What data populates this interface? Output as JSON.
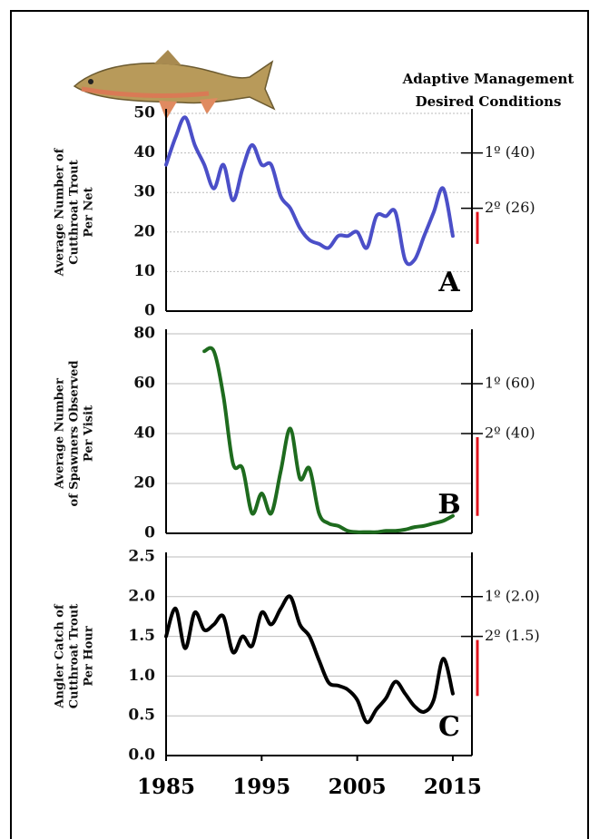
{
  "header": [
    "Adaptive Management",
    "Desired Conditions"
  ],
  "chart_data": [
    {
      "type": "line",
      "panel_label": "A",
      "y_label": [
        "Average Number of",
        "Cutthroat Trout",
        "Per Net"
      ],
      "x": [
        1985,
        1986,
        1987,
        1988,
        1989,
        1990,
        1991,
        1992,
        1993,
        1994,
        1995,
        1996,
        1997,
        1998,
        1999,
        2000,
        2001,
        2002,
        2003,
        2004,
        2005,
        2006,
        2007,
        2008,
        2009,
        2010,
        2011,
        2012,
        2013,
        2014,
        2015
      ],
      "series": [
        {
          "color": "#4b4fc8",
          "values": [
            37,
            44,
            49,
            42,
            37,
            31,
            37,
            28,
            36,
            42,
            37,
            37,
            29,
            26,
            21,
            18,
            17,
            16,
            19,
            19,
            20,
            16,
            24,
            24,
            25,
            13,
            13,
            19,
            25,
            31,
            19
          ]
        }
      ],
      "xlim": [
        1985,
        2017
      ],
      "ylim": [
        0,
        50
      ],
      "yticks": [
        0,
        10,
        20,
        30,
        40,
        50
      ],
      "grid": true,
      "annotations": [
        {
          "label": "1º (40)",
          "value": 40
        },
        {
          "label": "2º (26)",
          "value": 26
        }
      ],
      "red_bar": [
        17,
        26
      ]
    },
    {
      "type": "line",
      "panel_label": "B",
      "y_label": [
        "Average Number",
        "of Spawners Observed",
        "Per Visit"
      ],
      "x": [
        1989,
        1990,
        1991,
        1992,
        1993,
        1994,
        1995,
        1996,
        1997,
        1998,
        1999,
        2000,
        2001,
        2002,
        2003,
        2004,
        2005,
        2006,
        2007,
        2008,
        2009,
        2010,
        2011,
        2012,
        2013,
        2014,
        2015
      ],
      "series": [
        {
          "color": "#1e6b1e",
          "values": [
            73,
            73,
            55,
            28,
            26,
            8,
            16,
            8,
            25,
            42,
            22,
            26,
            8,
            4,
            3,
            1,
            0.5,
            0.5,
            0.5,
            1,
            1,
            1.5,
            2.5,
            3,
            4,
            5,
            7
          ]
        }
      ],
      "xlim": [
        1985,
        2017
      ],
      "ylim": [
        0,
        80
      ],
      "yticks": [
        0,
        20,
        40,
        60,
        80
      ],
      "grid": true,
      "annotations": [
        {
          "label": "1º (60)",
          "value": 60
        },
        {
          "label": "2º (40)",
          "value": 40
        }
      ],
      "red_bar": [
        7,
        40
      ]
    },
    {
      "type": "line",
      "panel_label": "C",
      "y_label": [
        "Angler Catch of",
        "Cutthroat Trout",
        "Per Hour"
      ],
      "x": [
        1985,
        1986,
        1987,
        1988,
        1989,
        1990,
        1991,
        1992,
        1993,
        1994,
        1995,
        1996,
        1997,
        1998,
        1999,
        2000,
        2001,
        2002,
        2003,
        2004,
        2005,
        2006,
        2007,
        2008,
        2009,
        2010,
        2011,
        2012,
        2013,
        2014,
        2015
      ],
      "series": [
        {
          "color": "#000000",
          "values": [
            1.5,
            1.85,
            1.35,
            1.8,
            1.58,
            1.65,
            1.75,
            1.3,
            1.5,
            1.38,
            1.8,
            1.65,
            1.85,
            2.0,
            1.65,
            1.5,
            1.2,
            0.92,
            0.88,
            0.83,
            0.7,
            0.42,
            0.58,
            0.72,
            0.93,
            0.78,
            0.62,
            0.55,
            0.7,
            1.22,
            0.78
          ]
        }
      ],
      "xlim": [
        1985,
        2017
      ],
      "xticks": [
        1985,
        1995,
        2005,
        2015
      ],
      "ylim": [
        0,
        2.5
      ],
      "yticks": [
        {
          "value": 0,
          "label": "0.0"
        },
        0.5,
        {
          "value": 1,
          "label": "1.0"
        },
        1.5,
        {
          "value": 2,
          "label": "2.0"
        },
        2.5
      ],
      "grid": true,
      "annotations": [
        {
          "label": "1º (2.0)",
          "value": 2
        },
        {
          "label": "2º (1.5)",
          "value": 1.5
        }
      ],
      "red_bar": [
        0.75,
        1.5
      ]
    }
  ]
}
